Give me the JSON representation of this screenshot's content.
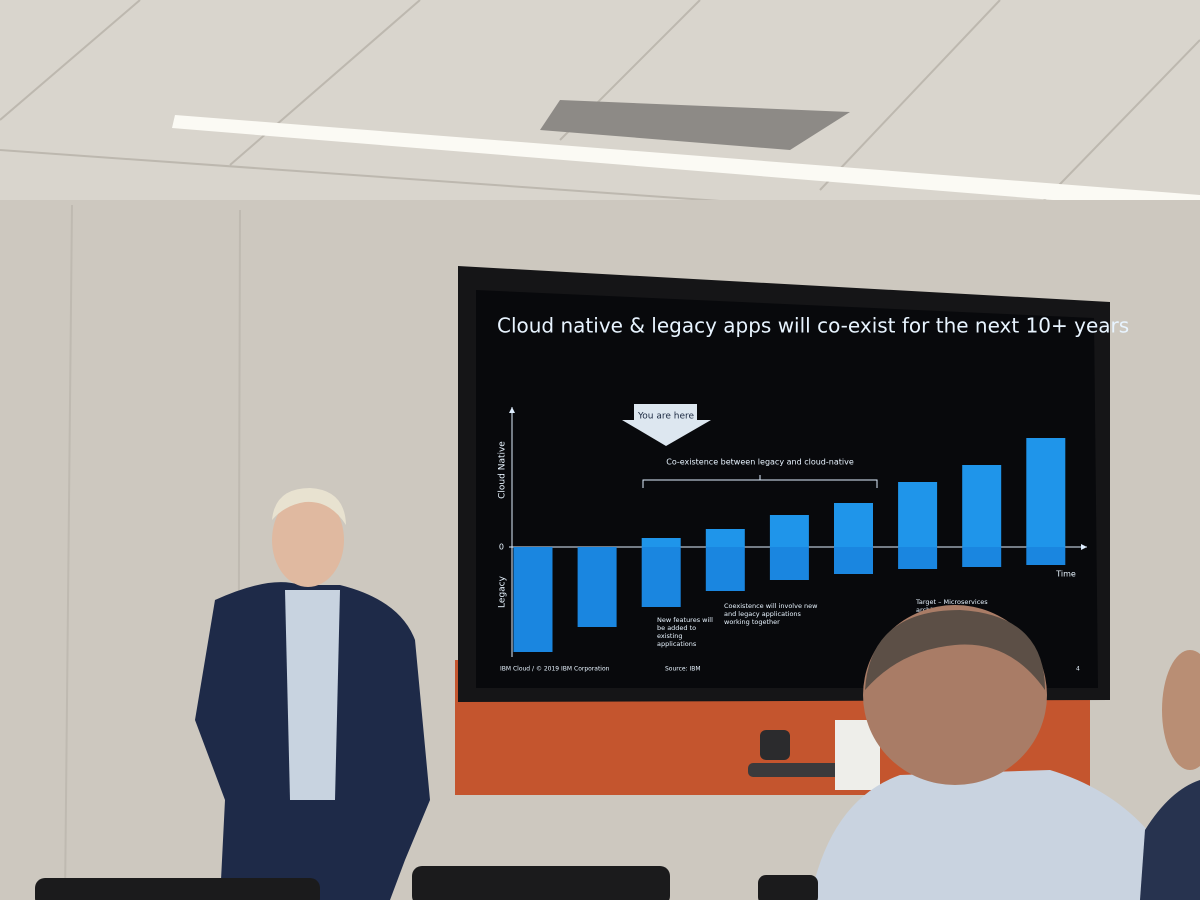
{
  "chart_data": {
    "type": "bar",
    "title": "Cloud native & legacy apps will co-exist for the next 10+ years",
    "categories": [
      null,
      null,
      null,
      null,
      null,
      null,
      null,
      null,
      null
    ],
    "series": [
      {
        "name": "Cloud Native",
        "color": "#1f95ea",
        "values": [
          0,
          0,
          0.9,
          1.8,
          3.2,
          4.4,
          6.5,
          8.2,
          10.9
        ]
      },
      {
        "name": "Legacy",
        "color": "#1a86e0",
        "values": [
          -10.5,
          -8,
          -6,
          -4.4,
          -3.3,
          -2.7,
          -2.2,
          -2,
          -1.8
        ]
      }
    ],
    "ylim": [
      -11,
      14
    ],
    "yticks": [
      0
    ],
    "x_label": "Time",
    "marker": "You are here",
    "bracket_label": "Co-existence between legacy and cloud-native",
    "annotations": [
      [
        "New features will",
        "be added to",
        "existing",
        "applications"
      ],
      [
        "Coexistence will involve new",
        "and legacy applications",
        "working together"
      ],
      [
        "Target – Microservices",
        "architect"
      ]
    ],
    "footer": "IBM Cloud / © 2019 IBM Corporation",
    "source": "Source: IBM",
    "page_number": "4"
  }
}
